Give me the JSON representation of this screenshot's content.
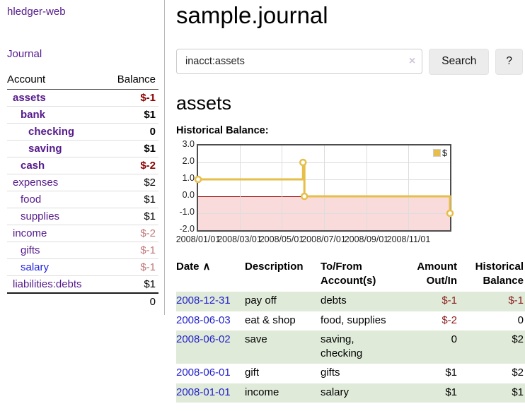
{
  "colors": {
    "link_purple": "#551a8b",
    "link_blue": "#2323dd",
    "date_link_blue": "#2323cc",
    "negative_strong": "#8b0000",
    "negative_soft": "#c0797b",
    "row_stripe_green": "#dfead9",
    "chart_line_yellow": "#e6be49",
    "chart_negative_region_pink": "#fadbdb",
    "chart_zero_line_red": "#990000",
    "button_gray": "#ececec"
  },
  "sidebar": {
    "app_title": "hledger-web",
    "nav": {
      "journal_label": "Journal"
    },
    "table": {
      "account_header": "Account",
      "balance_header": "Balance",
      "accounts": [
        {
          "name": "assets",
          "indent": 1,
          "bold": true,
          "balance": "$-1",
          "balance_style": "neg-strong"
        },
        {
          "name": "bank",
          "indent": 2,
          "bold": true,
          "balance": "$1",
          "balance_style": "pos"
        },
        {
          "name": "checking",
          "indent": 3,
          "bold": true,
          "balance": "0",
          "balance_style": "pos"
        },
        {
          "name": "saving",
          "indent": 3,
          "bold": true,
          "balance": "$1",
          "balance_style": "pos"
        },
        {
          "name": "cash",
          "indent": 2,
          "bold": true,
          "balance": "$-2",
          "balance_style": "neg-strong"
        },
        {
          "name": "expenses",
          "indent": 1,
          "bold": false,
          "balance": "$2",
          "balance_style": "pos"
        },
        {
          "name": "food",
          "indent": 2,
          "bold": false,
          "balance": "$1",
          "balance_style": "pos"
        },
        {
          "name": "supplies",
          "indent": 2,
          "bold": false,
          "balance": "$1",
          "balance_style": "pos"
        },
        {
          "name": "income",
          "indent": 1,
          "bold": false,
          "balance": "$-2",
          "balance_style": "neg-soft"
        },
        {
          "name": "gifts",
          "indent": 2,
          "bold": false,
          "balance": "$-1",
          "balance_style": "neg-soft"
        },
        {
          "name": "salary",
          "indent": 2,
          "bold": false,
          "balance": "$-1",
          "balance_style": "neg-soft",
          "link_color": "blue"
        },
        {
          "name": "liabilities:debts",
          "indent": 1,
          "bold": false,
          "balance": "$1",
          "balance_style": "pos"
        }
      ],
      "total": "0"
    }
  },
  "main": {
    "title": "sample.journal",
    "search": {
      "value": "inacct:assets",
      "clear_glyph": "×",
      "button_label": "Search",
      "help_label": "?"
    },
    "account_heading": "assets",
    "chart_label": "Historical Balance:",
    "chart_data": {
      "type": "line",
      "step": true,
      "title": "Historical Balance:",
      "series": [
        {
          "name": "$",
          "color": "#e6be49",
          "points": [
            [
              "2008-01-01",
              1
            ],
            [
              "2008-06-01",
              2
            ],
            [
              "2008-06-03",
              0
            ],
            [
              "2008-12-31",
              -1
            ]
          ]
        }
      ],
      "x_range": [
        "2008-01-01",
        "2008-12-31"
      ],
      "x_ticks": [
        "2008/01/01",
        "2008/03/01",
        "2008/05/01",
        "2008/07/01",
        "2008/09/01",
        "2008/11/01"
      ],
      "y_ticks": [
        "3.0",
        "2.0",
        "1.0",
        "0.0",
        "-1.0",
        "-2.0"
      ],
      "ylim": [
        -2,
        3
      ],
      "grid": true,
      "negative_region_shaded": true,
      "legend": {
        "position": "top-right",
        "label": "$"
      }
    },
    "transactions": {
      "headers": {
        "date": "Date",
        "sort_indicator": "∧",
        "description": "Description",
        "accounts": "To/From Account(s)",
        "amount": "Amount Out/In",
        "balance": "Historical Balance"
      },
      "rows": [
        {
          "date": "2008-12-31",
          "description": "pay off",
          "accounts": "debts",
          "amount": "$-1",
          "amount_neg": true,
          "balance": "$-1",
          "balance_neg": true,
          "shaded": true
        },
        {
          "date": "2008-06-03",
          "description": "eat & shop",
          "accounts": "food, supplies",
          "amount": "$-2",
          "amount_neg": true,
          "balance": "0",
          "balance_neg": false,
          "shaded": false
        },
        {
          "date": "2008-06-02",
          "description": "save",
          "accounts": "saving, checking",
          "amount": "0",
          "amount_neg": false,
          "balance": "$2",
          "balance_neg": false,
          "shaded": true
        },
        {
          "date": "2008-06-01",
          "description": "gift",
          "accounts": "gifts",
          "amount": "$1",
          "amount_neg": false,
          "balance": "$2",
          "balance_neg": false,
          "shaded": false
        },
        {
          "date": "2008-01-01",
          "description": "income",
          "accounts": "salary",
          "amount": "$1",
          "amount_neg": false,
          "balance": "$1",
          "balance_neg": false,
          "shaded": true
        }
      ]
    }
  }
}
